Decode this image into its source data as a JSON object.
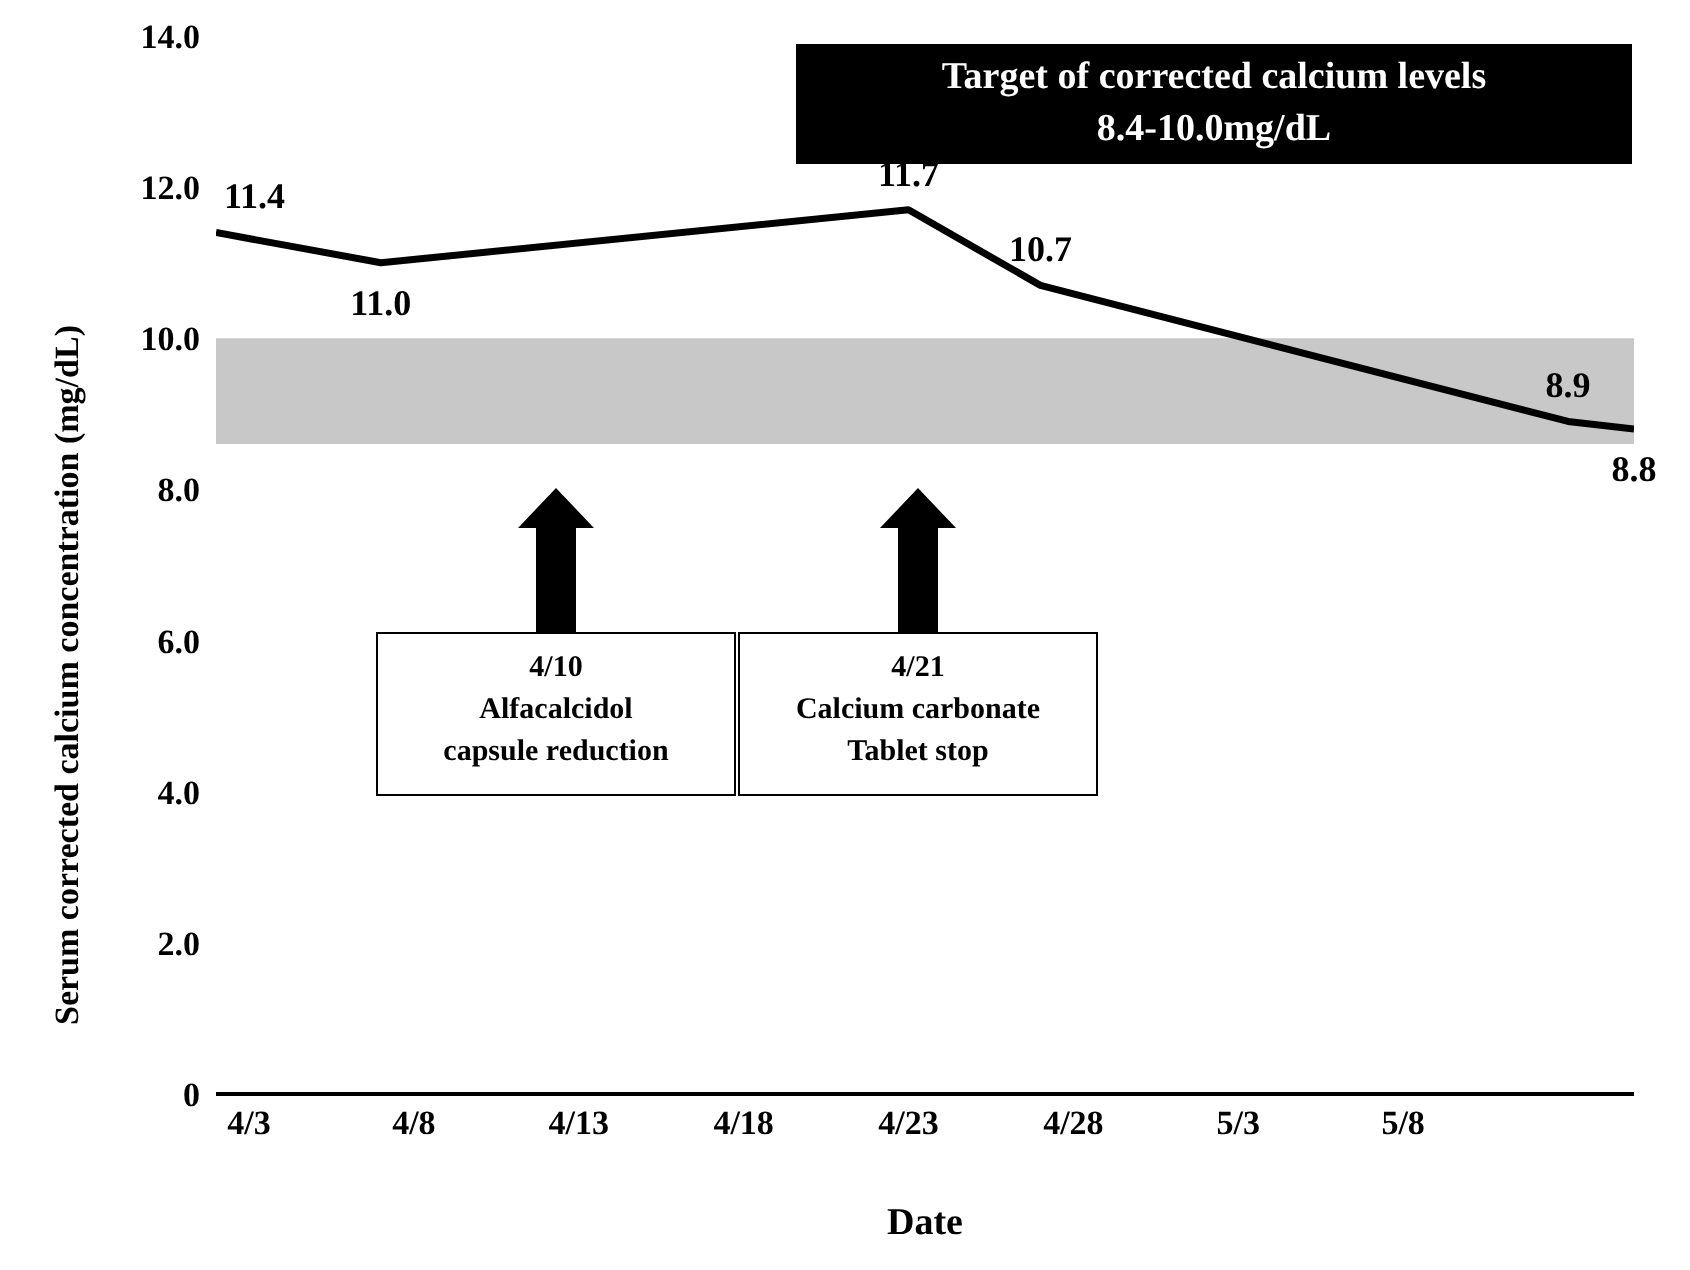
{
  "chart_data": {
    "type": "line",
    "xlabel": "Date",
    "ylabel": "Serum corrected calcium concentration (mg/dL)",
    "x": [
      "--04-02",
      "--04-07",
      "--04-23",
      "--04-27",
      "--05-13",
      "--05-15"
    ],
    "series": [
      {
        "color": "#000000",
        "values": [
          11.4,
          11.0,
          11.7,
          10.7,
          8.9,
          8.8
        ]
      }
    ],
    "value_labels": [
      "11.4",
      "11.0",
      "11.7",
      "10.7",
      "8.9",
      "8.8"
    ],
    "marker": "none",
    "xlim": [
      "--04-02",
      "--05-15"
    ],
    "xticks": [
      {
        "value": "--04-03",
        "label": "4/3"
      },
      {
        "value": "--04-08",
        "label": "4/8"
      },
      {
        "value": "--04-13",
        "label": "4/13"
      },
      {
        "value": "--04-18",
        "label": "4/18"
      },
      {
        "value": "--04-23",
        "label": "4/23"
      },
      {
        "value": "--04-28",
        "label": "4/28"
      },
      {
        "value": "--05-03",
        "label": "5/3"
      },
      {
        "value": "--05-08",
        "label": "5/8"
      }
    ],
    "ylim": [
      0,
      14
    ],
    "yticks": [
      0,
      {
        "value": 2,
        "label": "2.0"
      },
      {
        "value": 4,
        "label": "4.0"
      },
      {
        "value": 6,
        "label": "6.0"
      },
      {
        "value": 8,
        "label": "8.0"
      },
      {
        "value": 10,
        "label": "10.0"
      },
      {
        "value": 12,
        "label": "12.0"
      },
      {
        "value": 14,
        "label": "14.0"
      }
    ],
    "bands": [
      {
        "axis": "y",
        "from": 8.6,
        "to": 10,
        "color": "#c8c8c8"
      }
    ],
    "annotations": [
      "Target of corrected calcium levels\n8.4-10.0mg/dL",
      "4/10\nAlfacalcidol\ncapsule reduction",
      "4/21\nCalcium carbonate\nTablet stop"
    ]
  }
}
